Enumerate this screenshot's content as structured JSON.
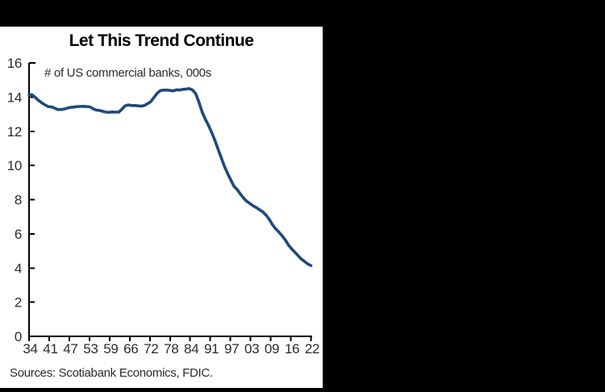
{
  "frame": {
    "outer_background": "#000000",
    "panel_background": "#ffffff"
  },
  "chart_data": {
    "type": "line",
    "title": "Let This Trend Continue",
    "annotation": "# of US commercial banks, 000s",
    "source": "Sources: Scotiabank Economics, FDIC.",
    "xlabel": "",
    "ylabel": "",
    "ylim": [
      0,
      16
    ],
    "y_tick_labels": [
      "0",
      "2",
      "4",
      "6",
      "8",
      "10",
      "12",
      "14",
      "16"
    ],
    "x_tick_labels": [
      "34",
      "41",
      "47",
      "53",
      "59",
      "66",
      "72",
      "78",
      "84",
      "91",
      "97",
      "03",
      "09",
      "16",
      "22"
    ],
    "grid": false,
    "legend": "none",
    "line_color": "#1f497d",
    "axis_color": "#000000",
    "label_color": "#2b2b2b",
    "x": [
      1934,
      1935,
      1936,
      1937,
      1938,
      1939,
      1940,
      1941,
      1942,
      1943,
      1944,
      1945,
      1946,
      1947,
      1948,
      1949,
      1950,
      1951,
      1952,
      1953,
      1954,
      1955,
      1956,
      1957,
      1958,
      1959,
      1960,
      1961,
      1962,
      1963,
      1964,
      1965,
      1966,
      1967,
      1968,
      1969,
      1970,
      1971,
      1972,
      1973,
      1974,
      1975,
      1976,
      1977,
      1978,
      1979,
      1980,
      1981,
      1982,
      1983,
      1984,
      1985,
      1986,
      1987,
      1988,
      1989,
      1990,
      1991,
      1992,
      1993,
      1994,
      1995,
      1996,
      1997,
      1998,
      1999,
      2000,
      2001,
      2002,
      2003,
      2004,
      2005,
      2006,
      2007,
      2008,
      2009,
      2010,
      2011,
      2012,
      2013,
      2014,
      2015,
      2016,
      2017,
      2018,
      2019,
      2020,
      2021,
      2022
    ],
    "series": [
      {
        "name": "# of US commercial banks, 000s",
        "values": [
          14.15,
          14.13,
          13.97,
          13.8,
          13.66,
          13.54,
          13.44,
          13.43,
          13.35,
          13.27,
          13.27,
          13.3,
          13.36,
          13.4,
          13.42,
          13.44,
          13.45,
          13.46,
          13.44,
          13.43,
          13.32,
          13.24,
          13.22,
          13.17,
          13.12,
          13.11,
          13.13,
          13.12,
          13.12,
          13.29,
          13.49,
          13.54,
          13.51,
          13.51,
          13.49,
          13.47,
          13.51,
          13.61,
          13.73,
          13.98,
          14.23,
          14.38,
          14.41,
          14.41,
          14.39,
          14.36,
          14.43,
          14.41,
          14.45,
          14.47,
          14.5,
          14.42,
          14.21,
          13.72,
          13.14,
          12.72,
          12.35,
          11.93,
          11.47,
          10.96,
          10.45,
          9.94,
          9.53,
          9.14,
          8.77,
          8.58,
          8.32,
          8.08,
          7.89,
          7.77,
          7.63,
          7.53,
          7.4,
          7.28,
          7.09,
          6.84,
          6.53,
          6.29,
          6.1,
          5.88,
          5.64,
          5.34,
          5.11,
          4.92,
          4.72,
          4.52,
          4.38,
          4.24,
          4.14
        ]
      }
    ]
  }
}
